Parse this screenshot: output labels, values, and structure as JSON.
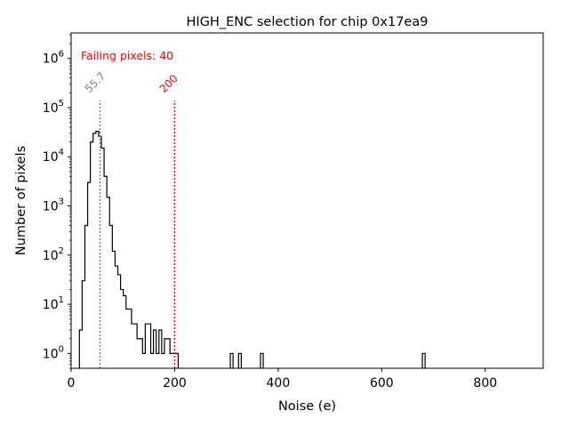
{
  "chart_data": {
    "type": "histogram",
    "title": "HIGH_ENC selection for chip 0x17ea9",
    "xlabel": "Noise (e)",
    "ylabel": "Number of pixels",
    "xlim": [
      0,
      912
    ],
    "ylim": [
      0.5,
      3300000
    ],
    "yscale": "log",
    "xticks": [
      0,
      200,
      400,
      600,
      800
    ],
    "yticks": [
      {
        "value": 1,
        "base": "10",
        "exp": "0"
      },
      {
        "value": 10,
        "base": "10",
        "exp": "1"
      },
      {
        "value": 100,
        "base": "10",
        "exp": "2"
      },
      {
        "value": 1000,
        "base": "10",
        "exp": "3"
      },
      {
        "value": 10000,
        "base": "10",
        "exp": "4"
      },
      {
        "value": 100000,
        "base": "10",
        "exp": "5"
      },
      {
        "value": 1000000,
        "base": "10",
        "exp": "6"
      }
    ],
    "bin_width": 5.3,
    "bins_start": 16,
    "counts": [
      3,
      30,
      400,
      3000,
      20000,
      30000,
      33000,
      26000,
      15000,
      4000,
      1500,
      400,
      120,
      60,
      40,
      20,
      15,
      8,
      8,
      4,
      4,
      2,
      2,
      1,
      4,
      4,
      1,
      3,
      1,
      3,
      1,
      2,
      2,
      1,
      1,
      1,
      0,
      0,
      0,
      0,
      0,
      0,
      0,
      0,
      0,
      0,
      0,
      0,
      0,
      0,
      0,
      0,
      0,
      0,
      0,
      1,
      0,
      0,
      1,
      0,
      0,
      0,
      0,
      0,
      0,
      0,
      1,
      0,
      0,
      0,
      0,
      0,
      0,
      0,
      0,
      0,
      0,
      0,
      0,
      0,
      0,
      0,
      0,
      0,
      0,
      0,
      0,
      0,
      0,
      0,
      0,
      0,
      0,
      0,
      0,
      0,
      0,
      0,
      0,
      0,
      0,
      0,
      0,
      0,
      0,
      0,
      0,
      0,
      0,
      0,
      0,
      0,
      0,
      0,
      0,
      0,
      0,
      0,
      0,
      0,
      0,
      0,
      0,
      0,
      0,
      1
    ],
    "thresholds": [
      {
        "value": 55.7,
        "label": "55.7",
        "color": "#808080"
      },
      {
        "value": 200,
        "label": "200",
        "color": "#ff0000"
      }
    ],
    "annotation": {
      "text": "Failing pixels: 40",
      "color": "#ff0000"
    },
    "line_color": "#000000"
  }
}
